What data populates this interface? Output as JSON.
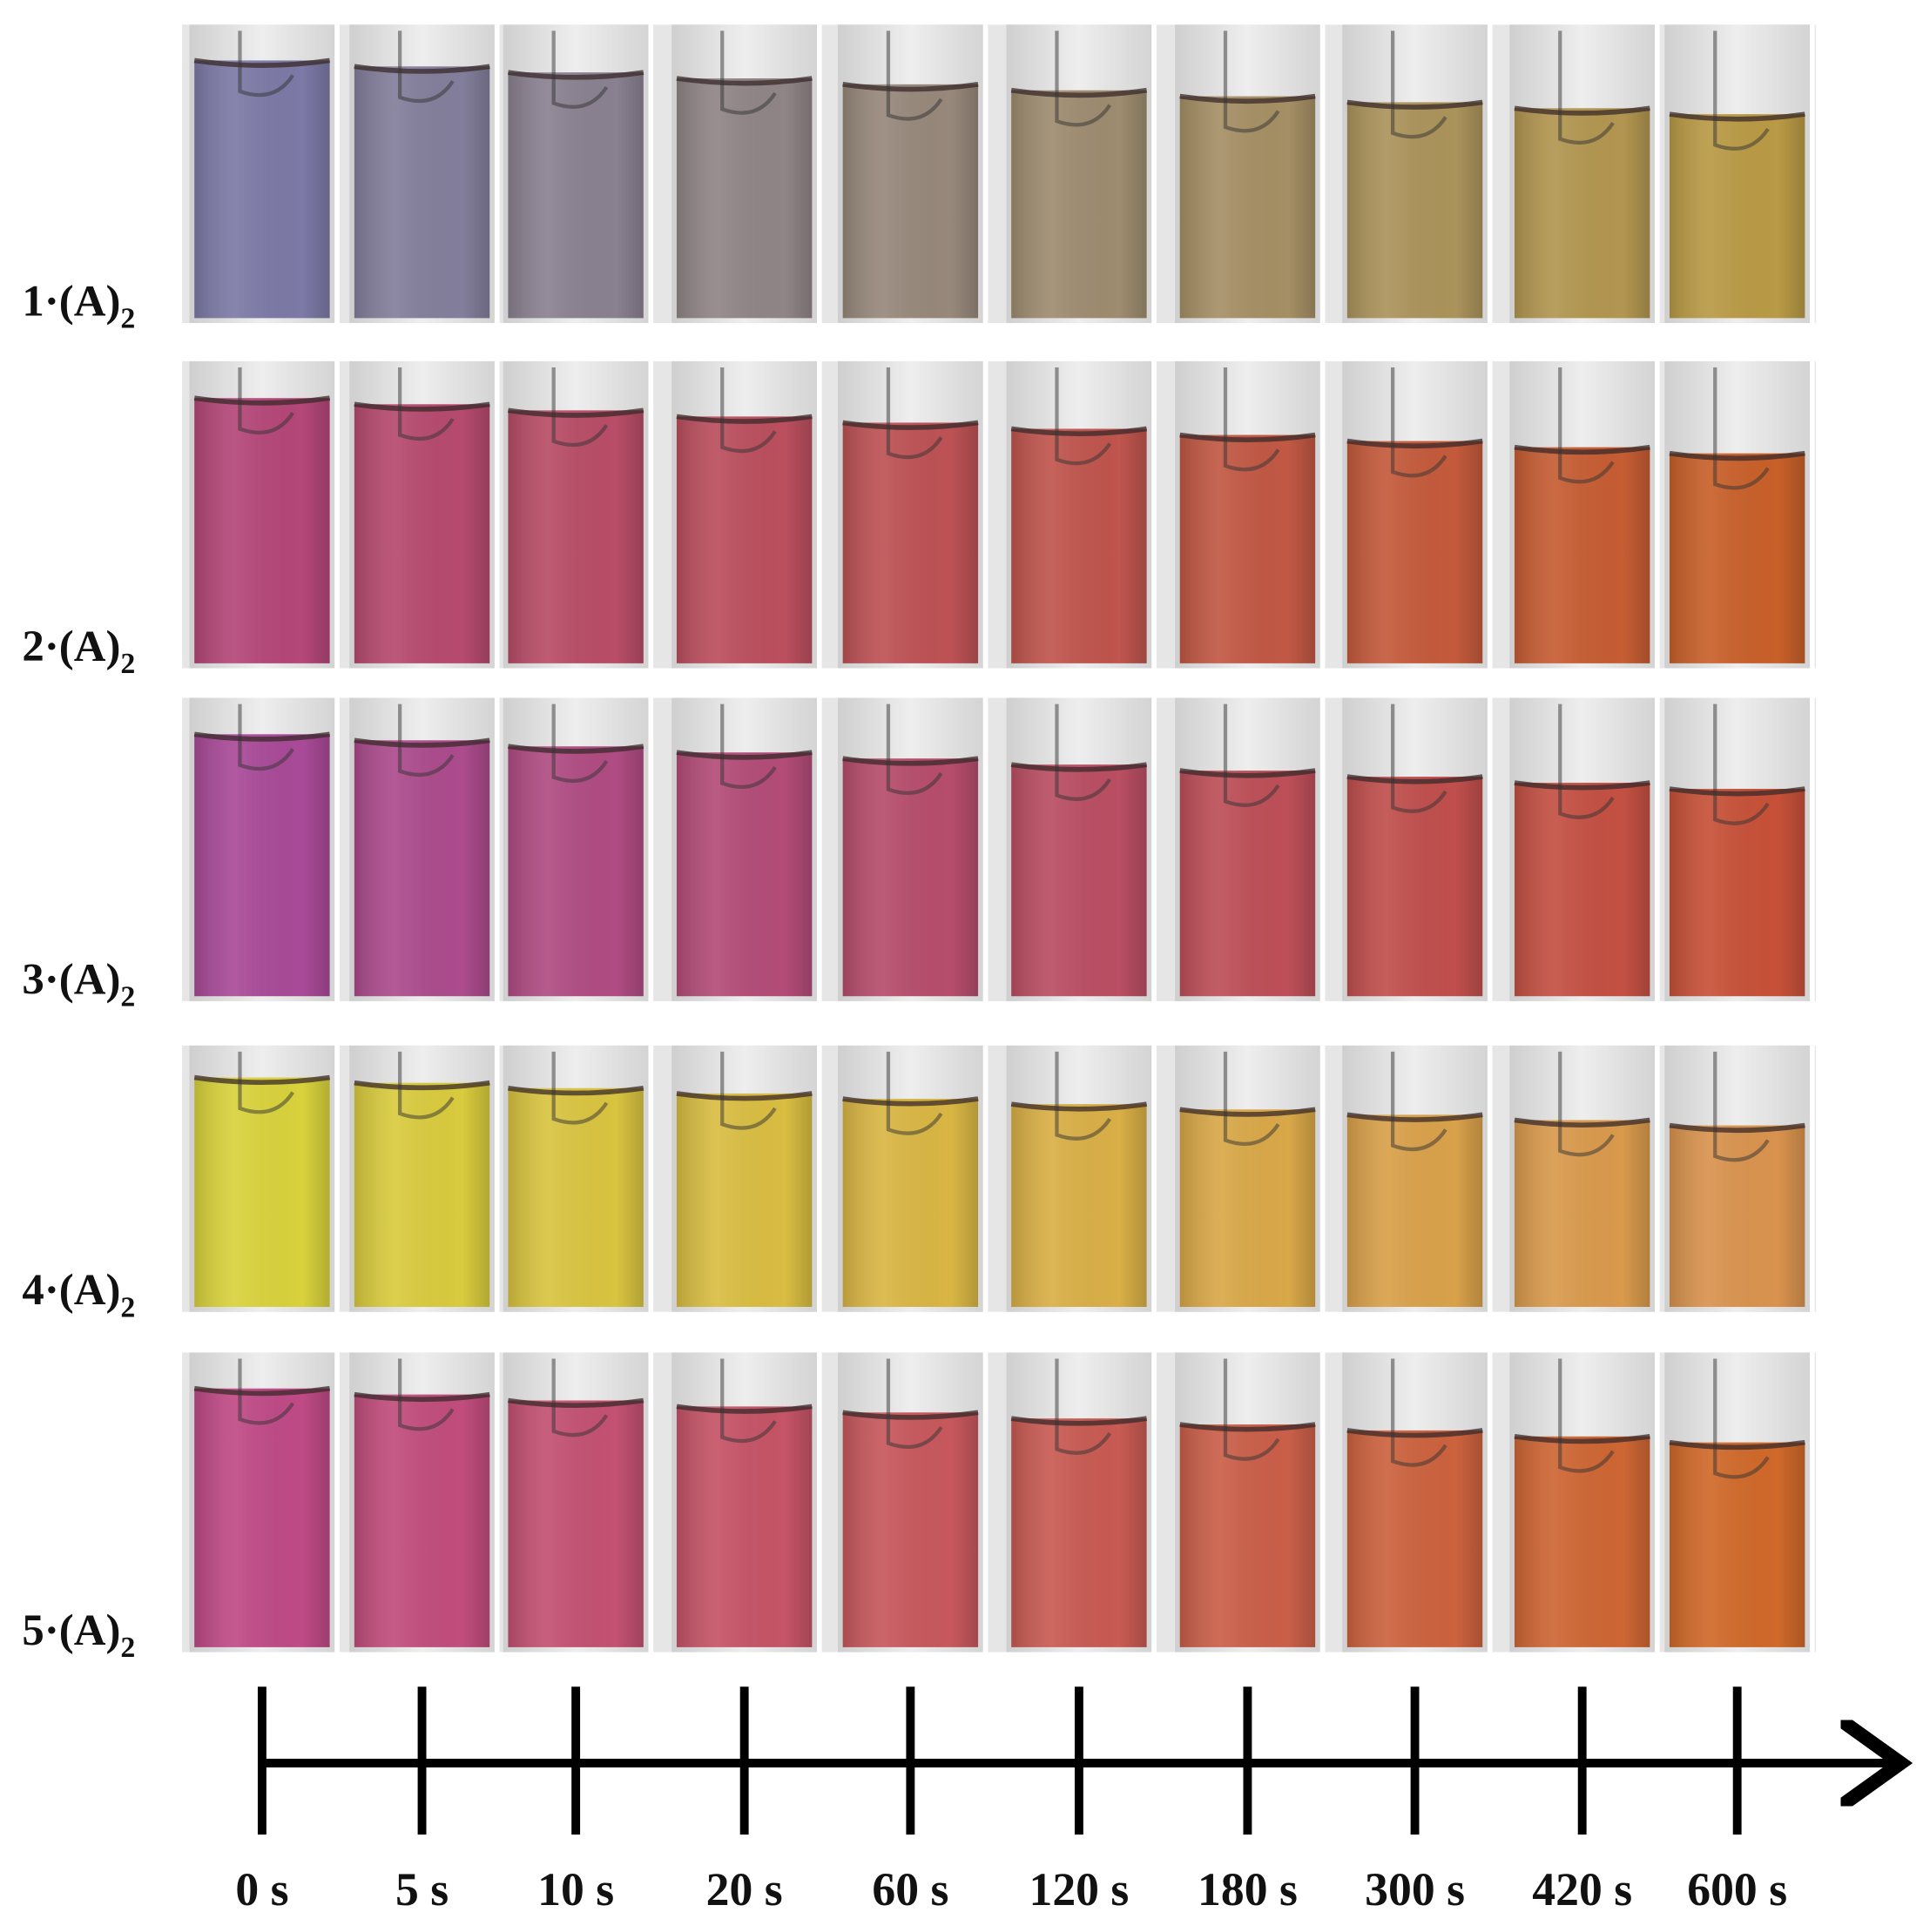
{
  "rows": [
    {
      "label": "1·(A)",
      "subscript": "2"
    },
    {
      "label": "2·(A)",
      "subscript": "2"
    },
    {
      "label": "3·(A)",
      "subscript": "2"
    },
    {
      "label": "4·(A)",
      "subscript": "2"
    },
    {
      "label": "5·(A)",
      "subscript": "2"
    }
  ],
  "timeline": {
    "ticks": [
      "0 s",
      "5 s",
      "10 s",
      "20 s",
      "60 s",
      "120 s",
      "180 s",
      "300 s",
      "420 s",
      "600 s"
    ]
  }
}
